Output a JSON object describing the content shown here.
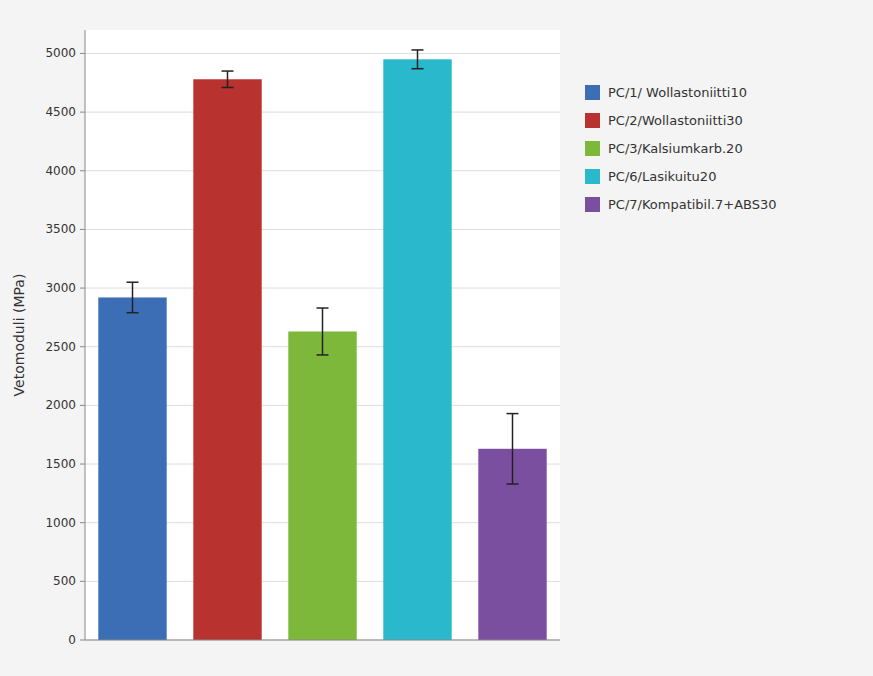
{
  "chart_data": {
    "type": "bar",
    "categories": [
      "PC/1/ Wollastoniitti10",
      "PC/2/Wollastoniitti30",
      "PC/3/Kalsiumkarb.20",
      "PC/6/Lasikuitu20",
      "PC/7/Kompatibil.7+ABS30"
    ],
    "values": [
      2920,
      4780,
      2630,
      4950,
      1630
    ],
    "errors": [
      130,
      70,
      200,
      80,
      300
    ],
    "colors": [
      "#3B6EB5",
      "#B83230",
      "#7DB83A",
      "#29B8CC",
      "#7B4FA0"
    ],
    "ylabel": "Vetomoduli (MPa)",
    "ylim": [
      0,
      5200
    ],
    "yticks": [
      0,
      500,
      1000,
      1500,
      2000,
      2500,
      3000,
      3500,
      4000,
      4500,
      5000
    ],
    "grid": true,
    "legend": "right",
    "tick_labels": "y"
  }
}
